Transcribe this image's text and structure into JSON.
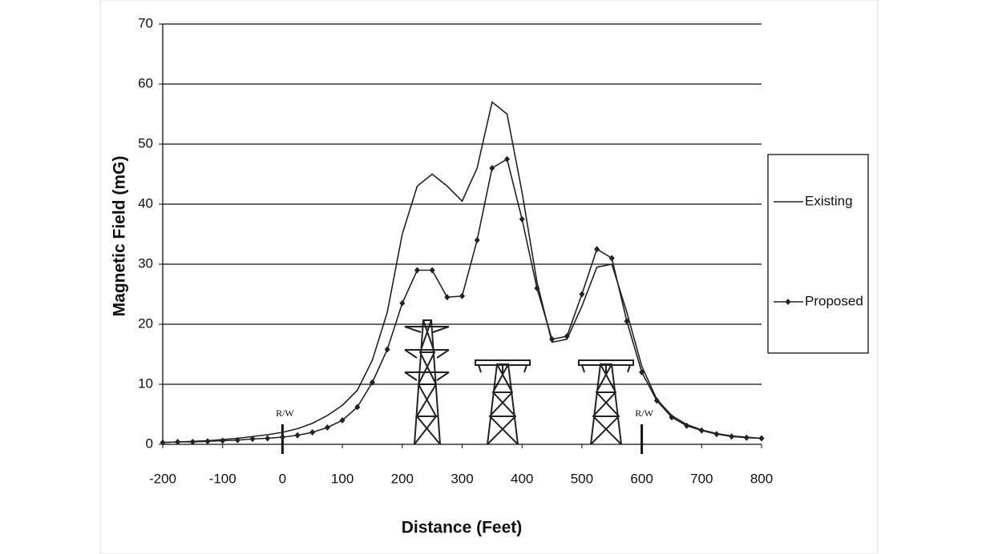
{
  "chart_data": {
    "type": "line",
    "x_label": "Distance (Feet)",
    "y_label": "Magnetic Field (mG)",
    "x": [
      -200,
      -175,
      -150,
      -125,
      -100,
      -75,
      -50,
      -25,
      0,
      25,
      50,
      75,
      100,
      125,
      150,
      175,
      200,
      225,
      250,
      275,
      300,
      325,
      350,
      375,
      400,
      425,
      450,
      475,
      500,
      525,
      550,
      575,
      600,
      625,
      650,
      675,
      700,
      725,
      750,
      775,
      800
    ],
    "series": [
      {
        "name": "Existing",
        "color": "#222222",
        "markers": false,
        "values": [
          0.3,
          0.4,
          0.5,
          0.6,
          0.8,
          1.0,
          1.3,
          1.6,
          2.0,
          2.6,
          3.5,
          4.8,
          6.5,
          9,
          14,
          22,
          35,
          43,
          45,
          43,
          40.5,
          46,
          57,
          55,
          42,
          27,
          17,
          17.5,
          23,
          29.5,
          30,
          22,
          13,
          7.5,
          4.8,
          3.3,
          2.4,
          1.8,
          1.4,
          1.2,
          1.0
        ]
      },
      {
        "name": "Proposed",
        "color": "#222222",
        "markers": true,
        "values": [
          0.3,
          0.4,
          0.4,
          0.5,
          0.6,
          0.7,
          0.9,
          1.0,
          1.2,
          1.5,
          2.0,
          2.8,
          4.0,
          6.2,
          10.3,
          15.8,
          23.5,
          29,
          29,
          24.5,
          24.7,
          34,
          46,
          47.5,
          37.5,
          26,
          17.5,
          18,
          25,
          32.5,
          31,
          20.5,
          12,
          7.3,
          4.5,
          3.1,
          2.3,
          1.7,
          1.3,
          1.1,
          1.0
        ]
      }
    ],
    "xlim": [
      -200,
      800
    ],
    "xticks": [
      -200,
      -100,
      0,
      100,
      200,
      300,
      400,
      500,
      600,
      700,
      800
    ],
    "ylim": [
      0,
      70
    ],
    "yticks": [
      0,
      10,
      20,
      30,
      40,
      50,
      60,
      70
    ],
    "grid": true,
    "legend": "right",
    "annotations": [
      {
        "text": "R/W",
        "x": 0
      },
      {
        "text": "R/W",
        "x": 600
      }
    ]
  }
}
